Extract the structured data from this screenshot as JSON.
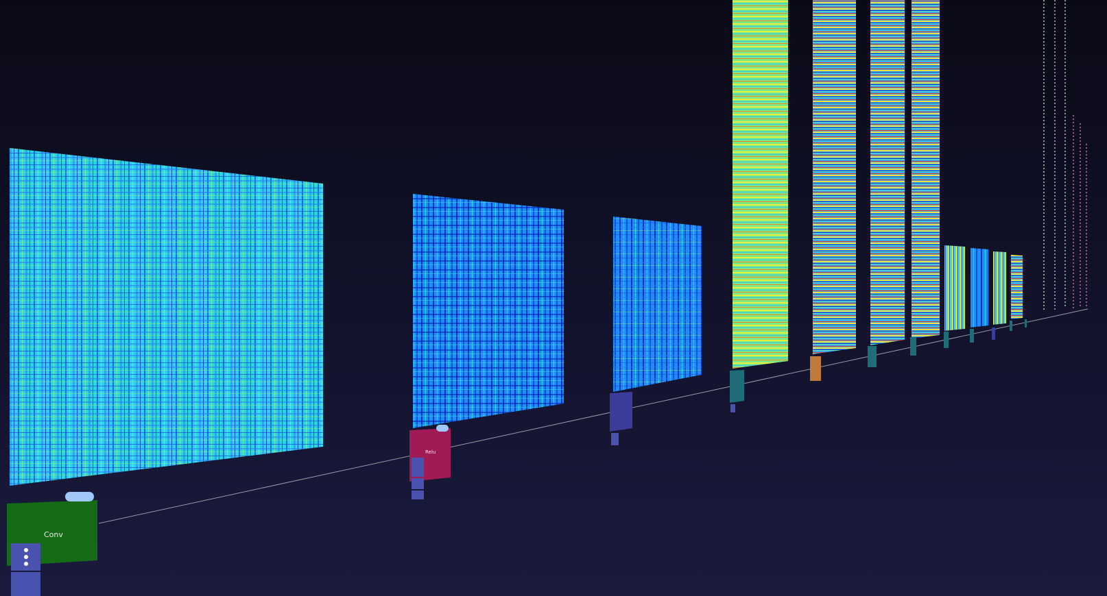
{
  "nodes": [
    {
      "label": "Conv"
    },
    {
      "label": "Relu"
    }
  ]
}
